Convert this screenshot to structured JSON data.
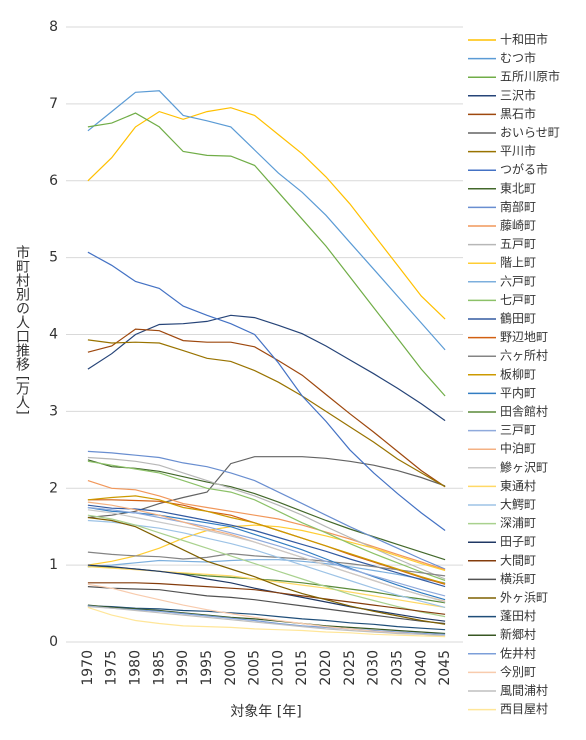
{
  "chart_data": {
    "type": "line",
    "y_label": "市町村別の人口推移 [万人]",
    "x_label": "対象年 [年]",
    "categories": [
      "1970",
      "1975",
      "1980",
      "1985",
      "1990",
      "1995",
      "2000",
      "2005",
      "2010",
      "2015",
      "2020",
      "2025",
      "2030",
      "2035",
      "2040",
      "2045"
    ],
    "ylim": [
      0,
      8
    ],
    "yticks": [
      0,
      1,
      2,
      3,
      4,
      5,
      6,
      7,
      8
    ],
    "grid": true,
    "series": [
      {
        "name": "十和田市",
        "color": "#FFC000",
        "values": [
          6.0,
          6.3,
          6.7,
          6.9,
          6.8,
          6.9,
          6.95,
          6.85,
          6.6,
          6.35,
          6.05,
          5.7,
          5.3,
          4.9,
          4.5,
          4.2
        ]
      },
      {
        "name": "むつ市",
        "color": "#5B9BD5",
        "values": [
          6.65,
          6.9,
          7.15,
          7.17,
          6.85,
          6.78,
          6.7,
          6.4,
          6.1,
          5.85,
          5.55,
          5.2,
          4.85,
          4.5,
          4.15,
          3.8
        ]
      },
      {
        "name": "五所川原市",
        "color": "#70AD47",
        "values": [
          6.7,
          6.75,
          6.88,
          6.7,
          6.38,
          6.33,
          6.32,
          6.2,
          5.85,
          5.5,
          5.15,
          4.75,
          4.35,
          3.95,
          3.55,
          3.2
        ]
      },
      {
        "name": "三沢市",
        "color": "#264478",
        "values": [
          3.55,
          3.75,
          4.0,
          4.13,
          4.14,
          4.17,
          4.25,
          4.22,
          4.12,
          4.01,
          3.85,
          3.67,
          3.49,
          3.3,
          3.1,
          2.88
        ]
      },
      {
        "name": "黒石市",
        "color": "#9E480E",
        "values": [
          3.77,
          3.85,
          4.07,
          4.05,
          3.92,
          3.9,
          3.9,
          3.84,
          3.66,
          3.47,
          3.22,
          2.97,
          2.73,
          2.48,
          2.23,
          2.02
        ]
      },
      {
        "name": "おいらせ町",
        "color": "#636363",
        "values": [
          1.62,
          1.65,
          1.7,
          1.8,
          1.88,
          1.95,
          2.32,
          2.41,
          2.41,
          2.41,
          2.39,
          2.35,
          2.3,
          2.23,
          2.14,
          2.03
        ]
      },
      {
        "name": "平川市",
        "color": "#997300",
        "values": [
          3.93,
          3.89,
          3.9,
          3.89,
          3.79,
          3.69,
          3.65,
          3.53,
          3.38,
          3.2,
          3.0,
          2.8,
          2.6,
          2.38,
          2.2,
          2.02
        ]
      },
      {
        "name": "つがる市",
        "color": "#4472C4",
        "values": [
          5.07,
          4.9,
          4.69,
          4.6,
          4.37,
          4.25,
          4.14,
          4.0,
          3.63,
          3.2,
          2.87,
          2.5,
          2.2,
          1.93,
          1.68,
          1.45
        ]
      },
      {
        "name": "東北町",
        "color": "#43682B",
        "values": [
          2.37,
          2.28,
          2.26,
          2.22,
          2.15,
          2.08,
          2.02,
          1.93,
          1.82,
          1.7,
          1.58,
          1.47,
          1.37,
          1.27,
          1.17,
          1.07
        ]
      },
      {
        "name": "南部町",
        "color": "#698ED0",
        "values": [
          2.48,
          2.46,
          2.43,
          2.4,
          2.33,
          2.28,
          2.2,
          2.1,
          1.95,
          1.8,
          1.65,
          1.5,
          1.36,
          1.22,
          1.08,
          0.95
        ]
      },
      {
        "name": "藤崎町",
        "color": "#F1975A",
        "values": [
          2.1,
          2.0,
          1.98,
          1.9,
          1.8,
          1.75,
          1.7,
          1.65,
          1.6,
          1.52,
          1.43,
          1.34,
          1.24,
          1.14,
          1.04,
          0.94
        ]
      },
      {
        "name": "五戸町",
        "color": "#B7B7B7",
        "values": [
          2.4,
          2.38,
          2.35,
          2.3,
          2.2,
          2.1,
          2.0,
          1.9,
          1.78,
          1.65,
          1.5,
          1.36,
          1.22,
          1.08,
          0.95,
          0.82
        ]
      },
      {
        "name": "階上町",
        "color": "#FFCD33",
        "values": [
          1.0,
          1.05,
          1.12,
          1.22,
          1.35,
          1.45,
          1.5,
          1.52,
          1.5,
          1.45,
          1.38,
          1.3,
          1.22,
          1.12,
          1.02,
          0.93
        ]
      },
      {
        "name": "六戸町",
        "color": "#7CAFDD",
        "values": [
          0.98,
          1.0,
          1.03,
          1.06,
          1.05,
          1.04,
          1.06,
          1.07,
          1.07,
          1.05,
          1.02,
          0.98,
          0.93,
          0.88,
          0.82,
          0.77
        ]
      },
      {
        "name": "七戸町",
        "color": "#8CC168",
        "values": [
          2.35,
          2.3,
          2.25,
          2.2,
          2.1,
          2.0,
          1.95,
          1.85,
          1.7,
          1.55,
          1.42,
          1.28,
          1.15,
          1.03,
          0.91,
          0.8
        ]
      },
      {
        "name": "鶴田町",
        "color": "#335AA1",
        "values": [
          1.78,
          1.74,
          1.73,
          1.7,
          1.64,
          1.58,
          1.52,
          1.45,
          1.36,
          1.27,
          1.18,
          1.08,
          0.99,
          0.9,
          0.81,
          0.72
        ]
      },
      {
        "name": "野辺地町",
        "color": "#D26012",
        "values": [
          1.85,
          1.85,
          1.84,
          1.83,
          1.78,
          1.7,
          1.65,
          1.55,
          1.45,
          1.35,
          1.25,
          1.14,
          1.04,
          0.94,
          0.84,
          0.75
        ]
      },
      {
        "name": "六ヶ所村",
        "color": "#848484",
        "values": [
          1.17,
          1.14,
          1.12,
          1.11,
          1.08,
          1.1,
          1.15,
          1.12,
          1.1,
          1.08,
          1.05,
          1.02,
          0.98,
          0.94,
          0.9,
          0.86
        ]
      },
      {
        "name": "板柳町",
        "color": "#CC9A00",
        "values": [
          1.85,
          1.88,
          1.9,
          1.85,
          1.75,
          1.7,
          1.62,
          1.55,
          1.45,
          1.35,
          1.25,
          1.15,
          1.05,
          0.95,
          0.85,
          0.76
        ]
      },
      {
        "name": "平内町",
        "color": "#327DC2",
        "values": [
          1.75,
          1.7,
          1.68,
          1.65,
          1.6,
          1.55,
          1.5,
          1.4,
          1.3,
          1.2,
          1.08,
          0.96,
          0.85,
          0.74,
          0.64,
          0.55
        ]
      },
      {
        "name": "田舎館村",
        "color": "#5A8A39",
        "values": [
          0.98,
          0.97,
          0.95,
          0.92,
          0.89,
          0.86,
          0.84,
          0.82,
          0.8,
          0.77,
          0.73,
          0.69,
          0.65,
          0.6,
          0.56,
          0.51
        ]
      },
      {
        "name": "三戸町",
        "color": "#8FAADC",
        "values": [
          1.75,
          1.72,
          1.68,
          1.62,
          1.56,
          1.5,
          1.42,
          1.34,
          1.25,
          1.15,
          1.05,
          0.95,
          0.86,
          0.77,
          0.68,
          0.6
        ]
      },
      {
        "name": "中泊町",
        "color": "#F4B183",
        "values": [
          1.82,
          1.78,
          1.72,
          1.65,
          1.56,
          1.47,
          1.4,
          1.3,
          1.2,
          1.1,
          1.0,
          0.9,
          0.8,
          0.7,
          0.61,
          0.53
        ]
      },
      {
        "name": "鰺ヶ沢町",
        "color": "#C9C9C9",
        "values": [
          1.72,
          1.68,
          1.62,
          1.56,
          1.5,
          1.45,
          1.38,
          1.3,
          1.2,
          1.1,
          1.0,
          0.9,
          0.8,
          0.7,
          0.61,
          0.52
        ]
      },
      {
        "name": "東通村",
        "color": "#FFD966",
        "values": [
          0.98,
          0.96,
          0.94,
          0.92,
          0.9,
          0.88,
          0.86,
          0.82,
          0.78,
          0.74,
          0.7,
          0.65,
          0.6,
          0.55,
          0.5,
          0.45
        ]
      },
      {
        "name": "大鰐町",
        "color": "#9DC3E6",
        "values": [
          1.58,
          1.56,
          1.52,
          1.48,
          1.42,
          1.35,
          1.28,
          1.2,
          1.1,
          1.0,
          0.9,
          0.8,
          0.7,
          0.61,
          0.53,
          0.45
        ]
      },
      {
        "name": "深浦町",
        "color": "#A9D18E",
        "values": [
          1.65,
          1.6,
          1.52,
          1.42,
          1.32,
          1.22,
          1.12,
          1.02,
          0.92,
          0.82,
          0.72,
          0.62,
          0.54,
          0.46,
          0.39,
          0.33
        ]
      },
      {
        "name": "田子町",
        "color": "#203864",
        "values": [
          1.0,
          0.98,
          0.95,
          0.92,
          0.88,
          0.82,
          0.77,
          0.7,
          0.64,
          0.58,
          0.52,
          0.46,
          0.41,
          0.36,
          0.31,
          0.27
        ]
      },
      {
        "name": "大間町",
        "color": "#843C0C",
        "values": [
          0.77,
          0.77,
          0.77,
          0.76,
          0.74,
          0.72,
          0.7,
          0.68,
          0.64,
          0.6,
          0.56,
          0.52,
          0.48,
          0.44,
          0.4,
          0.36
        ]
      },
      {
        "name": "横浜町",
        "color": "#525252",
        "values": [
          0.72,
          0.7,
          0.69,
          0.68,
          0.64,
          0.6,
          0.58,
          0.55,
          0.51,
          0.47,
          0.43,
          0.39,
          0.35,
          0.31,
          0.27,
          0.24
        ]
      },
      {
        "name": "外ヶ浜町",
        "color": "#7F6000",
        "values": [
          1.62,
          1.58,
          1.5,
          1.35,
          1.2,
          1.05,
          0.95,
          0.85,
          0.73,
          0.63,
          0.55,
          0.47,
          0.4,
          0.34,
          0.28,
          0.23
        ]
      },
      {
        "name": "蓬田村",
        "color": "#1F4E79",
        "values": [
          0.47,
          0.46,
          0.44,
          0.43,
          0.41,
          0.4,
          0.38,
          0.36,
          0.33,
          0.3,
          0.28,
          0.25,
          0.23,
          0.2,
          0.18,
          0.16
        ]
      },
      {
        "name": "新郷村",
        "color": "#385723",
        "values": [
          0.48,
          0.45,
          0.43,
          0.41,
          0.38,
          0.35,
          0.32,
          0.3,
          0.27,
          0.24,
          0.21,
          0.19,
          0.17,
          0.15,
          0.13,
          0.11
        ]
      },
      {
        "name": "佐井村",
        "color": "#7C9FD9",
        "values": [
          0.47,
          0.44,
          0.42,
          0.4,
          0.37,
          0.34,
          0.31,
          0.28,
          0.24,
          0.21,
          0.19,
          0.17,
          0.15,
          0.13,
          0.11,
          0.1
        ]
      },
      {
        "name": "今別町",
        "color": "#F8CBAD",
        "values": [
          0.75,
          0.7,
          0.62,
          0.55,
          0.48,
          0.42,
          0.37,
          0.32,
          0.28,
          0.24,
          0.2,
          0.17,
          0.14,
          0.12,
          0.1,
          0.08
        ]
      },
      {
        "name": "風間浦村",
        "color": "#BFBFBF",
        "values": [
          0.46,
          0.44,
          0.41,
          0.38,
          0.35,
          0.32,
          0.29,
          0.26,
          0.23,
          0.2,
          0.17,
          0.15,
          0.13,
          0.11,
          0.1,
          0.08
        ]
      },
      {
        "name": "西目屋村",
        "color": "#FFE699",
        "values": [
          0.45,
          0.35,
          0.28,
          0.24,
          0.21,
          0.2,
          0.19,
          0.17,
          0.16,
          0.15,
          0.13,
          0.12,
          0.1,
          0.09,
          0.08,
          0.07
        ]
      }
    ]
  }
}
